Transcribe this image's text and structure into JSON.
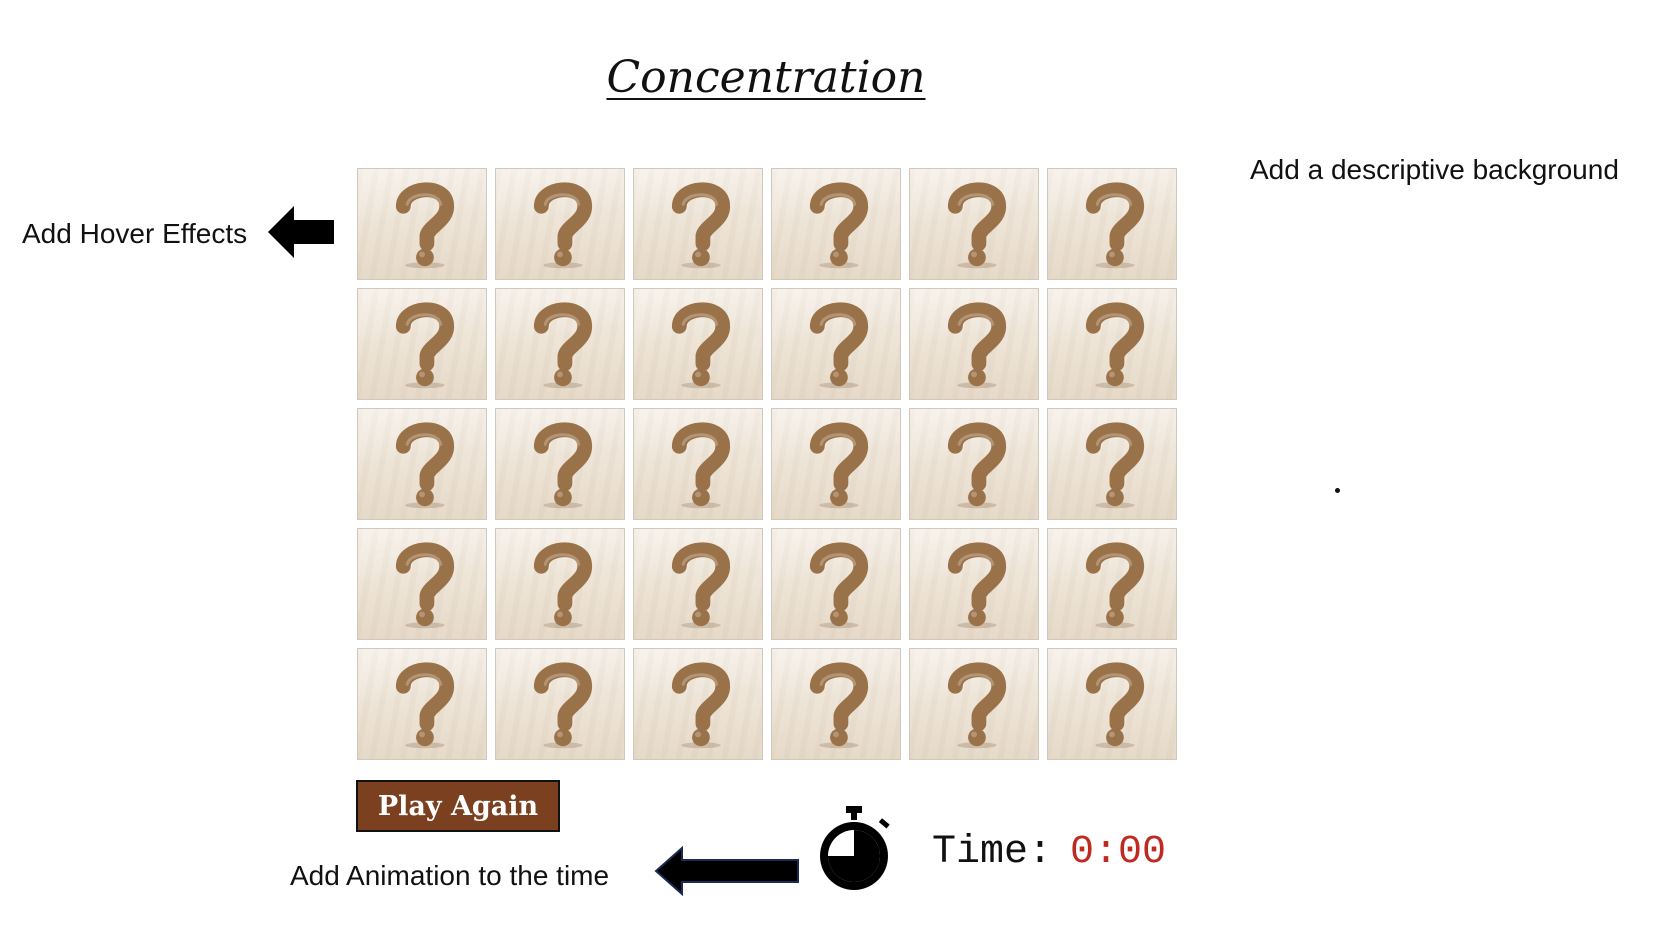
{
  "title": "Concentration",
  "annotations": {
    "hover": "Add Hover Effects",
    "background": "Add a descriptive background",
    "animation": "Add Animation to the time"
  },
  "board": {
    "rows": 5,
    "cols": 6,
    "card_symbol": "question-mark",
    "card_color": "#9a7249"
  },
  "play_again_label": "Play Again",
  "timer": {
    "label": "Time:",
    "value": "0:00",
    "value_color": "#c0291f"
  },
  "colors": {
    "button_bg": "#7a4020",
    "title": "#111111"
  }
}
